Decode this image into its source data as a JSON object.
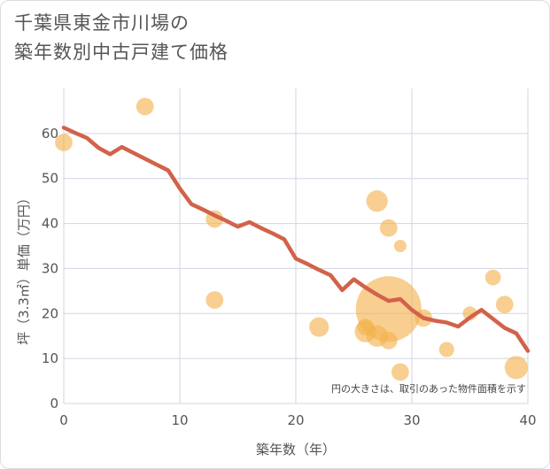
{
  "chart_data": {
    "type": "scatter",
    "title_lines": [
      "千葉県東金市川場の",
      "築年数別中古戸建て価格"
    ],
    "xlabel": "築年数（年）",
    "ylabel": "坪（3.3㎡）単価（万円）",
    "xlim": [
      0,
      40
    ],
    "ylim": [
      0,
      70
    ],
    "x_ticks": [
      0,
      10,
      20,
      30,
      40
    ],
    "y_ticks": [
      0,
      10,
      20,
      30,
      40,
      50,
      60
    ],
    "note": "円の大きさは、取引のあった物件面積を示す",
    "colors": {
      "bubble": "#f4b24d",
      "trend": "#d2624a",
      "grid": "#cfd6e3",
      "axis_text": "#555555"
    },
    "bubbles": [
      {
        "x": 0,
        "y": 58,
        "size": 2
      },
      {
        "x": 7,
        "y": 66,
        "size": 2
      },
      {
        "x": 13,
        "y": 41,
        "size": 2
      },
      {
        "x": 13,
        "y": 23,
        "size": 2
      },
      {
        "x": 22,
        "y": 17,
        "size": 2.5
      },
      {
        "x": 26,
        "y": 17,
        "size": 1.8
      },
      {
        "x": 26,
        "y": 16,
        "size": 3
      },
      {
        "x": 27,
        "y": 45,
        "size": 3
      },
      {
        "x": 27,
        "y": 15,
        "size": 3
      },
      {
        "x": 28,
        "y": 39,
        "size": 2
      },
      {
        "x": 28,
        "y": 21,
        "size": 28
      },
      {
        "x": 28,
        "y": 14,
        "size": 2
      },
      {
        "x": 29,
        "y": 35,
        "size": 1
      },
      {
        "x": 29,
        "y": 7,
        "size": 2
      },
      {
        "x": 31,
        "y": 19,
        "size": 2
      },
      {
        "x": 33,
        "y": 12,
        "size": 1.5
      },
      {
        "x": 35,
        "y": 20,
        "size": 1.3
      },
      {
        "x": 37,
        "y": 28,
        "size": 1.6
      },
      {
        "x": 38,
        "y": 22,
        "size": 2
      },
      {
        "x": 39,
        "y": 8,
        "size": 3.5
      }
    ],
    "trend": {
      "x": [
        0,
        1,
        2,
        3,
        4,
        5,
        6,
        7,
        8,
        9,
        10,
        11,
        12,
        13,
        14,
        15,
        16,
        17,
        18,
        19,
        20,
        21,
        22,
        23,
        24,
        25,
        26,
        27,
        28,
        29,
        30,
        31,
        32,
        33,
        34,
        35,
        36,
        37,
        38,
        39,
        40
      ],
      "y": [
        61.3,
        60.1,
        59,
        56.8,
        55.4,
        57,
        55.7,
        54.4,
        53.1,
        51.8,
        47.8,
        44.3,
        43.1,
        41.8,
        40.6,
        39.3,
        40.3,
        39,
        37.8,
        36.5,
        32.2,
        31,
        29.7,
        28.5,
        25.2,
        27.6,
        25.8,
        24.2,
        22.8,
        23.2,
        20.8,
        19,
        18.4,
        18,
        17.1,
        19.1,
        20.8,
        18.8,
        16.8,
        15.6,
        11.7
      ]
    }
  }
}
